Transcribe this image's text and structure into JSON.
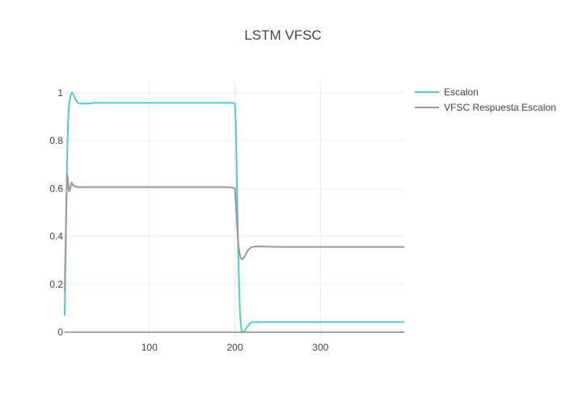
{
  "chart_data": {
    "type": "line",
    "title": "LSTM VFSC",
    "xlabel": "",
    "ylabel": "",
    "xlim": [
      1,
      398
    ],
    "ylim": [
      -0.03,
      1.05
    ],
    "x_ticks": [
      100,
      200,
      300
    ],
    "y_ticks": [
      0,
      0.2,
      0.4,
      0.6,
      0.8,
      1
    ],
    "y_tick_labels": [
      "0",
      "0.2",
      "0.4",
      "0.6",
      "0.8",
      "1"
    ],
    "grid": true,
    "legend_position": "top-right",
    "series": [
      {
        "name": "Escalon",
        "color": "#4ecbd0",
        "x": [
          1,
          2,
          3,
          4,
          5,
          6,
          7,
          8,
          9,
          10,
          11,
          12,
          14,
          16,
          18,
          20,
          25,
          30,
          35,
          40,
          50,
          100,
          150,
          195,
          200,
          201,
          202,
          203,
          204,
          205,
          206,
          207,
          208,
          209,
          210,
          211,
          212,
          214,
          216,
          218,
          220,
          222,
          225,
          230,
          240,
          260,
          300,
          350,
          398
        ],
        "y": [
          0.07,
          0.3,
          0.55,
          0.75,
          0.88,
          0.94,
          0.97,
          0.99,
          1.0,
          1.0,
          0.995,
          0.985,
          0.97,
          0.96,
          0.955,
          0.955,
          0.955,
          0.955,
          0.958,
          0.958,
          0.958,
          0.958,
          0.958,
          0.958,
          0.955,
          0.88,
          0.7,
          0.5,
          0.32,
          0.18,
          0.08,
          0.03,
          0.005,
          0.0,
          0.0,
          0.002,
          0.008,
          0.02,
          0.03,
          0.038,
          0.042,
          0.042,
          0.042,
          0.042,
          0.042,
          0.042,
          0.042,
          0.042,
          0.042
        ]
      },
      {
        "name": "VFSC Respuesta Escalon",
        "color": "#999999",
        "x": [
          1,
          2,
          3,
          4,
          5,
          6,
          7,
          8,
          9,
          10,
          11,
          12,
          13,
          14,
          16,
          18,
          20,
          25,
          30,
          40,
          100,
          150,
          195,
          200,
          201,
          202,
          203,
          204,
          205,
          206,
          207,
          208,
          209,
          210,
          212,
          214,
          216,
          218,
          220,
          225,
          230,
          240,
          260,
          300,
          350,
          398
        ],
        "y": [
          0.17,
          0.35,
          0.55,
          0.66,
          0.63,
          0.59,
          0.59,
          0.61,
          0.625,
          0.62,
          0.61,
          0.612,
          0.61,
          0.608,
          0.607,
          0.606,
          0.606,
          0.606,
          0.606,
          0.606,
          0.606,
          0.606,
          0.606,
          0.6,
          0.55,
          0.48,
          0.42,
          0.37,
          0.34,
          0.32,
          0.31,
          0.305,
          0.305,
          0.31,
          0.32,
          0.335,
          0.345,
          0.352,
          0.356,
          0.358,
          0.358,
          0.357,
          0.356,
          0.356,
          0.356,
          0.356
        ]
      },
      {
        "name": "",
        "color": "#888888",
        "x": [
          1,
          398
        ],
        "y": [
          0,
          0
        ]
      }
    ]
  }
}
